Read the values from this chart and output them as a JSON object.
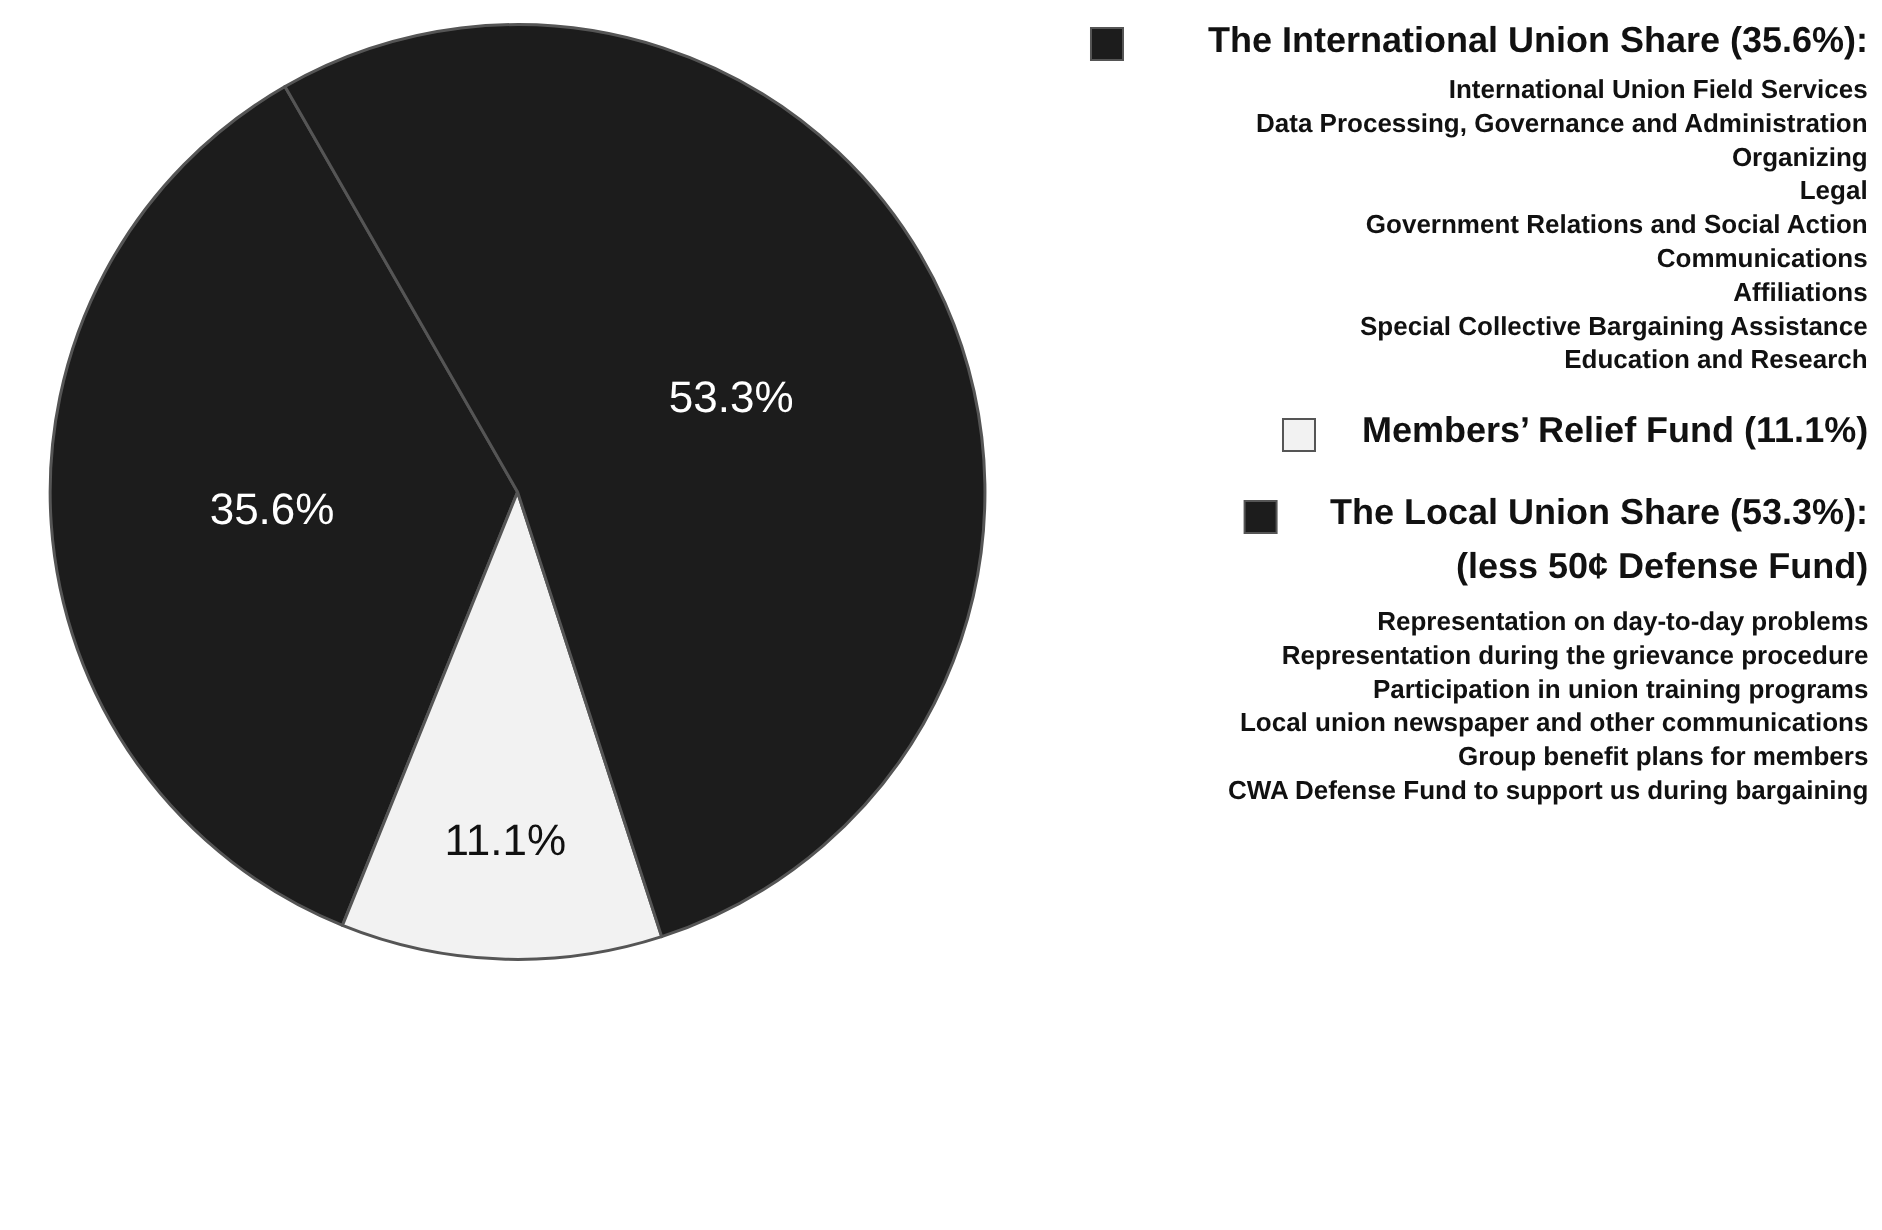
{
  "chart_data": {
    "type": "pie",
    "categories": [
      "The International Union Share (35.6%)",
      "Members’ Relief Fund (11.1%)",
      "The Local Union Share (53.3%)"
    ],
    "values": [
      35.6,
      11.1,
      53.3
    ],
    "colors": [
      "#1c1c1c",
      "#f2f2f2",
      "#1c1c1c"
    ],
    "value_labels": [
      "35.6%",
      "11.1%",
      "53.3%"
    ],
    "legend": "right",
    "annotations": [
      ":",
      ":",
      "International Union Field Services\nData Processing, Governance and Administration\nOrganizing\nLegal\nGovernment Relations and Social Action\nCommunications\nAffiliations\nSpecial Collective Bargaining Assistance\nEducation and Research",
      "(less 50¢ Defense Fund)",
      "Representation on day-to-day problems\nRepresentation during the grievance procedure\nParticipation in union training programs\nLocal union newspaper and other communications\nGroup benefit plans for members\nCWA Defense Fund to support us during bargaining"
    ]
  }
}
